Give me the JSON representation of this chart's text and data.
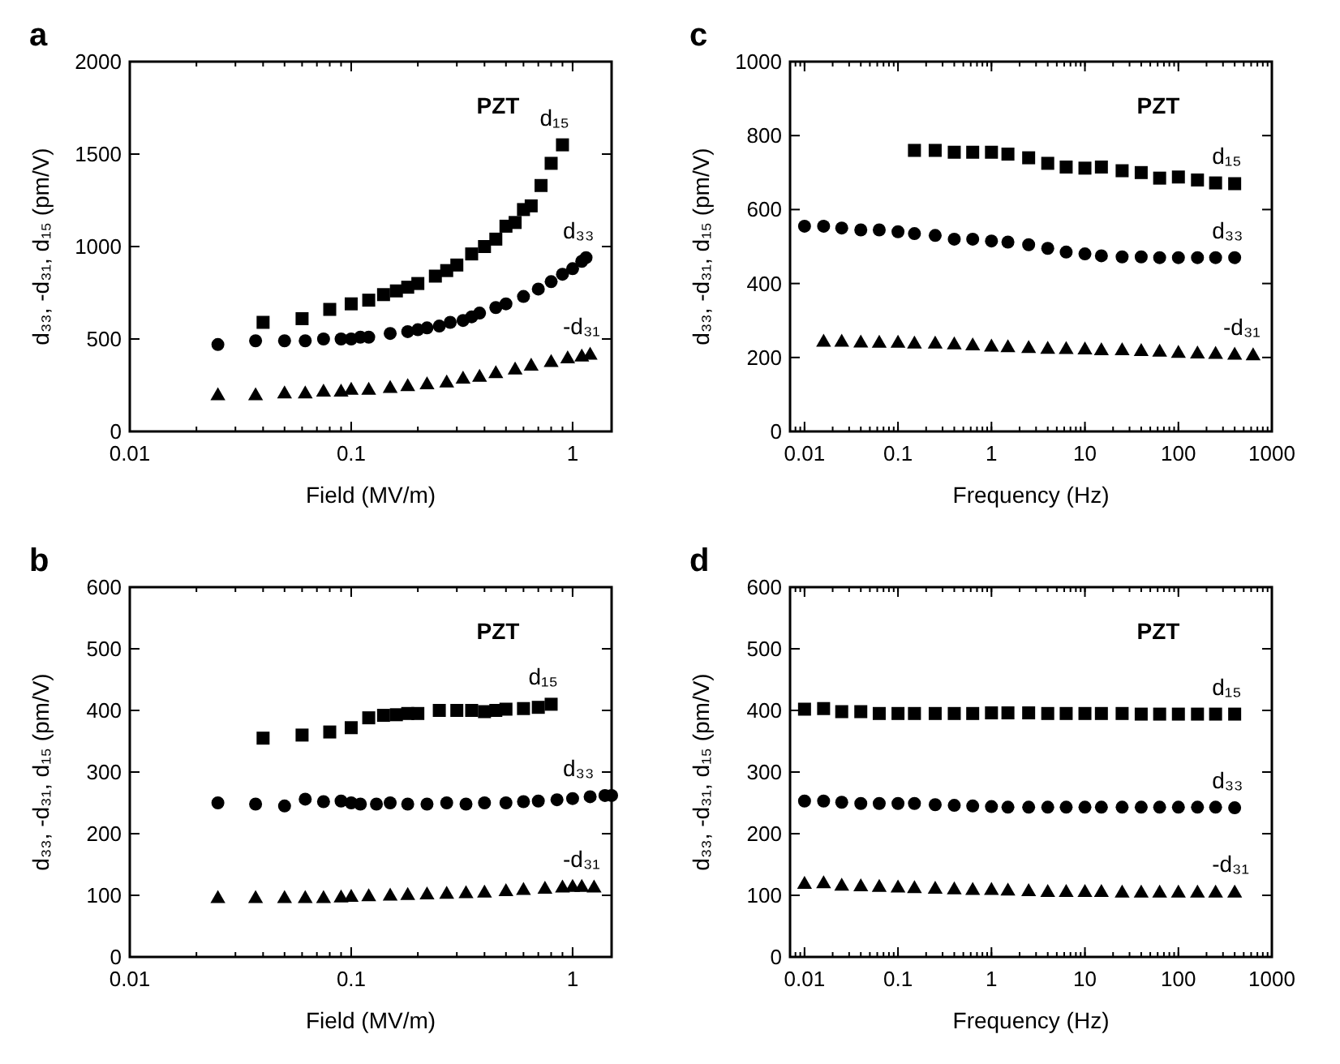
{
  "chart_data": [
    {
      "type": "scatter",
      "title": "a",
      "annotations": [
        "PZT"
      ],
      "xlabel": "Field (MV/m)",
      "ylabel": "d₃₃, -d₃₁, d₁₅ (pm/V)",
      "log": "x",
      "xlim": [
        0.01,
        1.5
      ],
      "xticks": [
        0.01,
        0.1,
        1
      ],
      "ylim": [
        0,
        2000
      ],
      "yticks": [
        0,
        500,
        1000,
        1500,
        2000
      ],
      "grid": false,
      "series": [
        {
          "name": "d₁₅",
          "color": "#000000",
          "marker": "square",
          "x": [
            0.04,
            0.06,
            0.08,
            0.1,
            0.12,
            0.14,
            0.16,
            0.18,
            0.2,
            0.24,
            0.27,
            0.3,
            0.35,
            0.4,
            0.45,
            0.5,
            0.55,
            0.6,
            0.65,
            0.72,
            0.8,
            0.9
          ],
          "values": [
            590,
            610,
            660,
            690,
            710,
            740,
            760,
            780,
            800,
            840,
            870,
            900,
            960,
            1000,
            1040,
            1110,
            1130,
            1200,
            1220,
            1330,
            1450,
            1550
          ]
        },
        {
          "name": "d₃₃",
          "color": "#000000",
          "marker": "circle",
          "x": [
            0.025,
            0.037,
            0.05,
            0.062,
            0.075,
            0.09,
            0.1,
            0.11,
            0.12,
            0.15,
            0.18,
            0.2,
            0.22,
            0.25,
            0.28,
            0.32,
            0.35,
            0.38,
            0.45,
            0.5,
            0.6,
            0.7,
            0.8,
            0.9,
            1.0,
            1.1,
            1.15
          ],
          "values": [
            470,
            490,
            490,
            490,
            500,
            500,
            500,
            510,
            510,
            530,
            540,
            550,
            560,
            570,
            590,
            600,
            620,
            640,
            670,
            690,
            730,
            770,
            810,
            850,
            880,
            920,
            940
          ]
        },
        {
          "name": "-d₃₁",
          "color": "#000000",
          "marker": "triangle",
          "x": [
            0.025,
            0.037,
            0.05,
            0.062,
            0.075,
            0.09,
            0.1,
            0.12,
            0.15,
            0.18,
            0.22,
            0.27,
            0.32,
            0.38,
            0.45,
            0.55,
            0.65,
            0.8,
            0.95,
            1.1,
            1.2
          ],
          "values": [
            200,
            200,
            210,
            210,
            220,
            220,
            230,
            230,
            240,
            250,
            260,
            270,
            290,
            300,
            320,
            340,
            360,
            380,
            400,
            410,
            420
          ]
        }
      ]
    },
    {
      "type": "scatter",
      "title": "c",
      "annotations": [
        "PZT"
      ],
      "xlabel": "Frequency (Hz)",
      "ylabel": "d₃₃, -d₃₁, d₁₅ (pm/V)",
      "log": "x",
      "xlim": [
        0.007,
        1000
      ],
      "xticks": [
        0.01,
        0.1,
        1,
        10,
        100,
        1000
      ],
      "ylim": [
        0,
        1000
      ],
      "yticks": [
        0,
        200,
        400,
        600,
        800,
        1000
      ],
      "grid": false,
      "series": [
        {
          "name": "d₁₅",
          "color": "#000000",
          "marker": "square",
          "x": [
            0.15,
            0.25,
            0.4,
            0.63,
            1,
            1.5,
            2.5,
            4,
            6.3,
            10,
            15,
            25,
            40,
            63,
            100,
            160,
            250,
            400
          ],
          "values": [
            760,
            760,
            755,
            755,
            755,
            750,
            740,
            725,
            715,
            712,
            715,
            705,
            700,
            685,
            688,
            680,
            672,
            670
          ]
        },
        {
          "name": "d₃₃",
          "color": "#000000",
          "marker": "circle",
          "x": [
            0.01,
            0.016,
            0.025,
            0.04,
            0.063,
            0.1,
            0.15,
            0.25,
            0.4,
            0.63,
            1,
            1.5,
            2.5,
            4,
            6.3,
            10,
            15,
            25,
            40,
            63,
            100,
            160,
            250,
            400
          ],
          "values": [
            555,
            555,
            550,
            545,
            545,
            540,
            535,
            530,
            520,
            520,
            515,
            512,
            505,
            495,
            485,
            480,
            475,
            472,
            472,
            470,
            470,
            470,
            470,
            470
          ]
        },
        {
          "name": "-d₃₁",
          "color": "#000000",
          "marker": "triangle",
          "x": [
            0.016,
            0.025,
            0.04,
            0.063,
            0.1,
            0.15,
            0.25,
            0.4,
            0.63,
            1,
            1.5,
            2.5,
            4,
            6.3,
            10,
            15,
            25,
            40,
            63,
            100,
            160,
            250,
            400,
            630
          ],
          "values": [
            245,
            245,
            243,
            242,
            242,
            240,
            240,
            238,
            235,
            232,
            230,
            228,
            226,
            225,
            224,
            222,
            222,
            220,
            218,
            215,
            213,
            212,
            210,
            208
          ]
        }
      ]
    },
    {
      "type": "scatter",
      "title": "b",
      "annotations": [
        "PZT"
      ],
      "xlabel": "Field (MV/m)",
      "ylabel": "d₃₃, -d₃₁, d₁₅ (pm/V)",
      "log": "x",
      "xlim": [
        0.01,
        1.5
      ],
      "xticks": [
        0.01,
        0.1,
        1
      ],
      "ylim": [
        0,
        600
      ],
      "yticks": [
        0,
        100,
        200,
        300,
        400,
        500,
        600
      ],
      "grid": false,
      "series": [
        {
          "name": "d₁₅",
          "color": "#000000",
          "marker": "square",
          "x": [
            0.04,
            0.06,
            0.08,
            0.1,
            0.12,
            0.14,
            0.16,
            0.18,
            0.2,
            0.25,
            0.3,
            0.35,
            0.4,
            0.45,
            0.5,
            0.6,
            0.7,
            0.8
          ],
          "values": [
            355,
            360,
            365,
            372,
            388,
            392,
            393,
            395,
            395,
            400,
            400,
            400,
            398,
            400,
            402,
            403,
            405,
            410
          ]
        },
        {
          "name": "d₃₃",
          "color": "#000000",
          "marker": "circle",
          "x": [
            0.025,
            0.037,
            0.05,
            0.062,
            0.075,
            0.09,
            0.1,
            0.11,
            0.13,
            0.15,
            0.18,
            0.22,
            0.27,
            0.33,
            0.4,
            0.5,
            0.6,
            0.7,
            0.85,
            1.0,
            1.2,
            1.4,
            1.5
          ],
          "values": [
            250,
            248,
            245,
            256,
            252,
            253,
            250,
            248,
            248,
            250,
            248,
            248,
            250,
            248,
            250,
            250,
            252,
            253,
            255,
            257,
            260,
            262,
            262
          ]
        },
        {
          "name": "-d₃₁",
          "color": "#000000",
          "marker": "triangle",
          "x": [
            0.025,
            0.037,
            0.05,
            0.062,
            0.075,
            0.09,
            0.1,
            0.12,
            0.15,
            0.18,
            0.22,
            0.27,
            0.33,
            0.4,
            0.5,
            0.6,
            0.75,
            0.9,
            1.0,
            1.1,
            1.25
          ],
          "values": [
            97,
            97,
            97,
            97,
            97,
            98,
            99,
            100,
            101,
            102,
            103,
            104,
            105,
            106,
            108,
            110,
            112,
            114,
            115,
            115,
            114
          ]
        }
      ]
    },
    {
      "type": "scatter",
      "title": "d",
      "annotations": [
        "PZT"
      ],
      "xlabel": "Frequency (Hz)",
      "ylabel": "d₃₃, -d₃₁, d₁₅ (pm/V)",
      "log": "x",
      "xlim": [
        0.007,
        1000
      ],
      "xticks": [
        0.01,
        0.1,
        1,
        10,
        100,
        1000
      ],
      "ylim": [
        0,
        600
      ],
      "yticks": [
        0,
        100,
        200,
        300,
        400,
        500,
        600
      ],
      "grid": false,
      "series": [
        {
          "name": "d₁₅",
          "color": "#000000",
          "marker": "square",
          "x": [
            0.01,
            0.016,
            0.025,
            0.04,
            0.063,
            0.1,
            0.15,
            0.25,
            0.4,
            0.63,
            1,
            1.5,
            2.5,
            4,
            6.3,
            10,
            15,
            25,
            40,
            63,
            100,
            160,
            250,
            400
          ],
          "values": [
            402,
            403,
            398,
            398,
            395,
            395,
            395,
            395,
            395,
            395,
            396,
            396,
            396,
            395,
            395,
            395,
            395,
            395,
            394,
            394,
            394,
            394,
            394,
            394
          ]
        },
        {
          "name": "d₃₃",
          "color": "#000000",
          "marker": "circle",
          "x": [
            0.01,
            0.016,
            0.025,
            0.04,
            0.063,
            0.1,
            0.15,
            0.25,
            0.4,
            0.63,
            1,
            1.5,
            2.5,
            4,
            6.3,
            10,
            15,
            25,
            40,
            63,
            100,
            160,
            250,
            400
          ],
          "values": [
            253,
            253,
            251,
            249,
            249,
            249,
            249,
            247,
            246,
            245,
            244,
            243,
            243,
            243,
            243,
            243,
            243,
            243,
            243,
            243,
            243,
            243,
            243,
            242
          ]
        },
        {
          "name": "-d₃₁",
          "color": "#000000",
          "marker": "triangle",
          "x": [
            0.01,
            0.016,
            0.025,
            0.04,
            0.063,
            0.1,
            0.15,
            0.25,
            0.4,
            0.63,
            1,
            1.5,
            2.5,
            4,
            6.3,
            10,
            15,
            25,
            40,
            63,
            100,
            160,
            250,
            400
          ],
          "values": [
            120,
            121,
            117,
            116,
            115,
            114,
            113,
            112,
            111,
            110,
            110,
            109,
            108,
            107,
            107,
            107,
            107,
            106,
            106,
            106,
            106,
            106,
            106,
            106
          ]
        }
      ]
    }
  ]
}
